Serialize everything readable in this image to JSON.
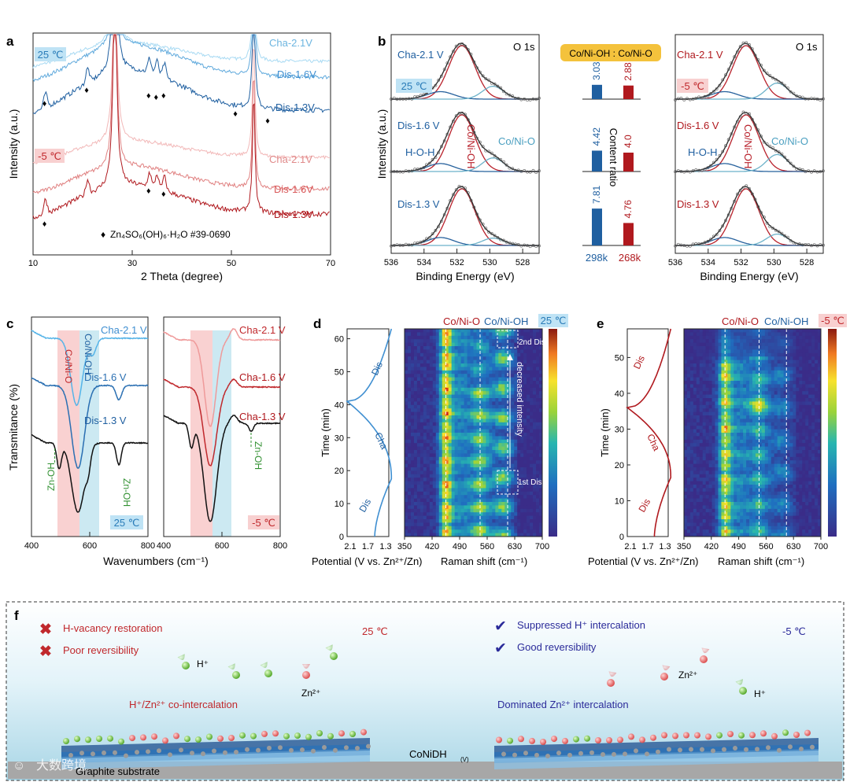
{
  "panel_letters": [
    "a",
    "b",
    "c",
    "d",
    "e",
    "f"
  ],
  "colors": {
    "blue_dark": "#1f5fa0",
    "blue_mid": "#3f8fd1",
    "blue_light": "#9fd2ef",
    "red_dark": "#b0191e",
    "red_mid": "#d9595a",
    "red_light": "#f2b3b3",
    "fit_red": "#b8212b",
    "fit_blue": "#25609c",
    "fit_cyan": "#6cb2c9",
    "tag_blue_bg": "#bfe3f5",
    "tag_red_bg": "#f8d0d0",
    "ratio_tag_bg": "#f4c23c",
    "green": "#2f8f2f",
    "navy": "#2b2b9a"
  },
  "chart_data": [
    {
      "id": "a",
      "type": "line",
      "xlabel": "2 Theta (degree)",
      "ylabel": "Intensity (a.u.)",
      "xlim": [
        10,
        70
      ],
      "xticks": [
        10,
        30,
        50,
        70
      ],
      "temp_tags": [
        "25 ℃",
        "-5 ℃"
      ],
      "series": [
        {
          "name": "Cha-2.1V",
          "temp": "25 ℃"
        },
        {
          "name": "Dis-1.6V",
          "temp": "25 ℃"
        },
        {
          "name": "Dis-1.3V",
          "temp": "25 ℃"
        },
        {
          "name": "Cha-2.1V",
          "temp": "-5 ℃"
        },
        {
          "name": "Dis-1.6V",
          "temp": "-5 ℃"
        },
        {
          "name": "Dis-1.3V",
          "temp": "-5 ℃"
        }
      ],
      "peaks": [
        26.5,
        54.5
      ],
      "marker_positions_25C": [
        12.5,
        21,
        33.5,
        35,
        36.5,
        51,
        57.5
      ],
      "marker_positions_m5C": [
        12.5,
        33.5,
        36.5
      ],
      "legend_marker": "♦",
      "legend_text": "Zn₄SO₆(OH)₆·H₂O #39-0690"
    },
    {
      "id": "b",
      "type": "line",
      "title": "O 1s",
      "xlabel": "Binding Energy (eV)",
      "ylabel": "Intensity (a.u.)",
      "xlim": [
        536,
        527
      ],
      "xticks": [
        536,
        534,
        532,
        530,
        528
      ],
      "reversed_x": true,
      "components": {
        "H-O-H": 533.0,
        "Co/Ni-OH": 531.7,
        "Co/Ni-O": 529.8
      },
      "left_labels": [
        "Cha-2.1 V",
        "Dis-1.6 V",
        "Dis-1.3 V"
      ],
      "right_labels": [
        "Cha-2.1 V",
        "Dis-1.6 V",
        "Dis-1.3 V"
      ],
      "left_temp": "25 ℃",
      "right_temp": "-5 ℃",
      "ratio_header": "Co/Ni-OH : Co/Ni-O",
      "ratio_axis_label": "Content ratio",
      "ratio_categories": [
        "298k",
        "268k"
      ],
      "ratio_values": [
        [
          3.03,
          2.88
        ],
        [
          4.42,
          4.0
        ],
        [
          7.81,
          4.76
        ]
      ],
      "ratio_value_labels": [
        [
          "3.03",
          "2.88"
        ],
        [
          "4.42",
          "4.0"
        ],
        [
          "7.81",
          "4.76"
        ]
      ]
    },
    {
      "id": "c",
      "type": "line",
      "xlabel": "Wavenumbers (cm⁻¹)",
      "ylabel": "Transmitance (%)",
      "xlim": [
        400,
        800
      ],
      "xticks": [
        400,
        600,
        800
      ],
      "xticks_right": [
        400,
        600,
        800
      ],
      "left_series": [
        "Cha-2.1 V",
        "Dis-1.6 V",
        "Dis-1.3 V"
      ],
      "right_series": [
        "Cha-2.1 V",
        "Cha-1.6 V",
        "Cha-1.3 V"
      ],
      "band_labels": [
        "Co/Ni-O",
        "Co/Ni-OH"
      ],
      "zn_oh_label": "Zn-OH",
      "zn_oh_positions": [
        480,
        700
      ],
      "left_temp": "25 ℃",
      "right_temp": "-5 ℃"
    },
    {
      "id": "d",
      "type": "heatmap",
      "potential_xlabel": "Potential (V vs. Zn²⁺/Zn)",
      "potential_xticks": [
        "2.1",
        "1.7",
        "1.3"
      ],
      "ylabel": "Time (min)",
      "ylim": [
        0,
        63
      ],
      "yticks": [
        0,
        10,
        20,
        30,
        40,
        50,
        60
      ],
      "xlabel": "Raman shift (cm⁻¹)",
      "xlim": [
        350,
        700
      ],
      "xticks": [
        350,
        420,
        490,
        560,
        630,
        700
      ],
      "bands": {
        "Co/Ni-O": 455,
        "Co/Ni-OH": 542,
        "third": 612
      },
      "legend": [
        "Co/Ni-O",
        "Co/Ni-OH"
      ],
      "temp": "25 ℃",
      "curve_labels": [
        "Dis",
        "Cha",
        "Dis"
      ],
      "annotations": [
        "2nd Dis",
        "decreased intensity",
        "1st Dis"
      ]
    },
    {
      "id": "e",
      "type": "heatmap",
      "potential_xlabel": "Potential (V vs. Zn²⁺/Zn)",
      "potential_xticks": [
        "2.1",
        "1.7",
        "1.3"
      ],
      "ylabel": "Time (min)",
      "ylim": [
        0,
        58
      ],
      "yticks": [
        0,
        10,
        20,
        30,
        40,
        50
      ],
      "xlabel": "Raman shift (cm⁻¹)",
      "xlim": [
        350,
        700
      ],
      "xticks": [
        350,
        420,
        490,
        560,
        630,
        700
      ],
      "bands": {
        "Co/Ni-O": 455,
        "Co/Ni-OH": 542,
        "third": 612
      },
      "legend": [
        "Co/Ni-O",
        "Co/Ni-OH"
      ],
      "temp": "-5 ℃",
      "curve_labels": [
        "Dis",
        "Cha",
        "Dis"
      ]
    }
  ],
  "schematic": {
    "left_items": [
      {
        "mark": "✖",
        "text": "H-vacancy restoration"
      },
      {
        "mark": "✖",
        "text": "Poor reversibility"
      }
    ],
    "right_items": [
      {
        "mark": "✔",
        "text": "Suppressed H⁺ intercalation"
      },
      {
        "mark": "✔",
        "text": "Good reversibility"
      }
    ],
    "left_temp": "25 ℃",
    "right_temp": "-5 ℃",
    "h_ion": "H⁺",
    "zn_ion": "Zn²⁺",
    "left_caption": "H⁺/Zn²⁺ co-intercalation",
    "right_caption": "Dominated Zn²⁺ intercalation",
    "center_label": "CoNiDH",
    "center_sub": "(V)",
    "substrate": "Graphite substrate"
  },
  "watermark": "大数跨境"
}
